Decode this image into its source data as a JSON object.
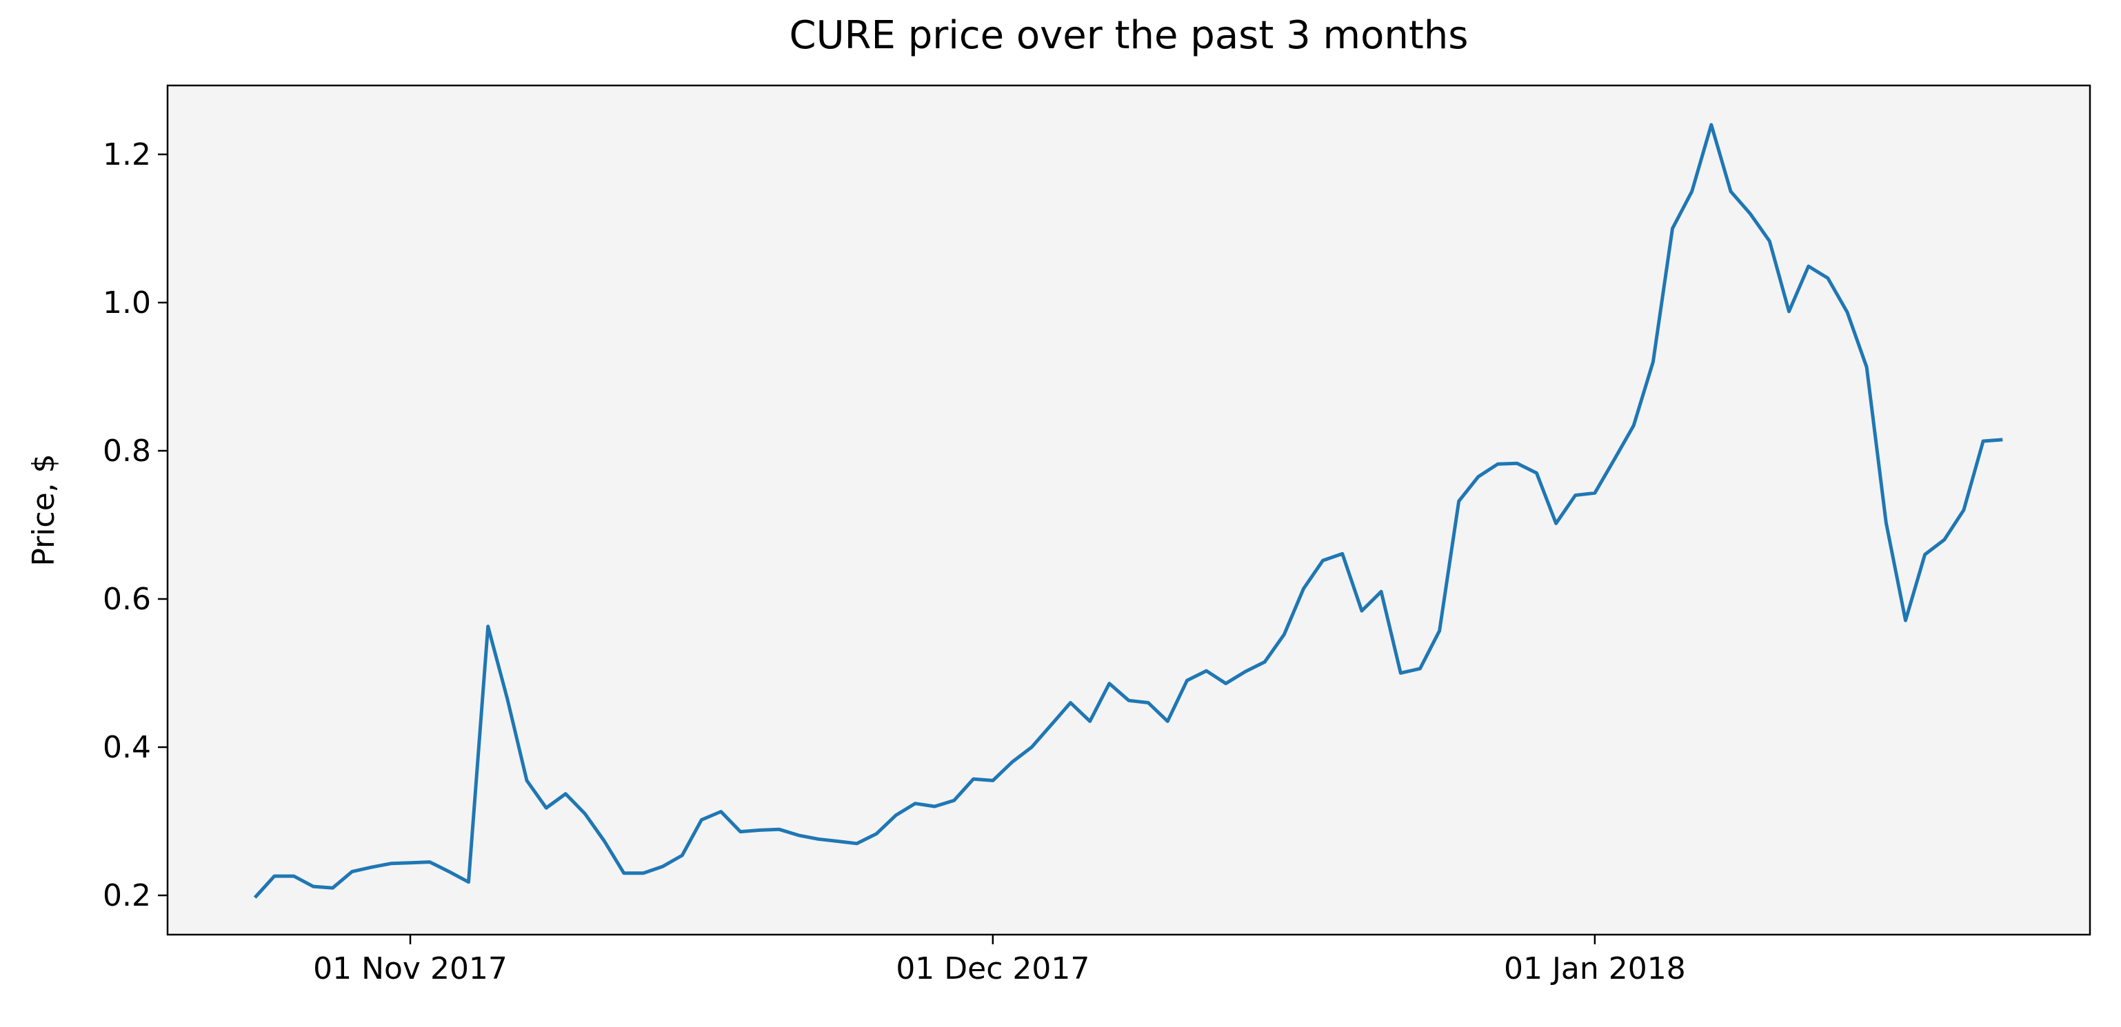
{
  "chart_data": {
    "type": "line",
    "title": "CURE price over the past 3 months",
    "ylabel": "Price, $",
    "x": [
      "2017-10-24",
      "2017-10-25",
      "2017-10-26",
      "2017-10-27",
      "2017-10-28",
      "2017-10-29",
      "2017-10-30",
      "2017-10-31",
      "2017-11-01",
      "2017-11-02",
      "2017-11-03",
      "2017-11-04",
      "2017-11-05",
      "2017-11-06",
      "2017-11-07",
      "2017-11-08",
      "2017-11-09",
      "2017-11-10",
      "2017-11-11",
      "2017-11-12",
      "2017-11-13",
      "2017-11-14",
      "2017-11-15",
      "2017-11-16",
      "2017-11-17",
      "2017-11-18",
      "2017-11-19",
      "2017-11-20",
      "2017-11-21",
      "2017-11-22",
      "2017-11-23",
      "2017-11-24",
      "2017-11-25",
      "2017-11-26",
      "2017-11-27",
      "2017-11-28",
      "2017-11-29",
      "2017-11-30",
      "2017-12-01",
      "2017-12-02",
      "2017-12-03",
      "2017-12-04",
      "2017-12-05",
      "2017-12-06",
      "2017-12-07",
      "2017-12-08",
      "2017-12-09",
      "2017-12-10",
      "2017-12-11",
      "2017-12-12",
      "2017-12-13",
      "2017-12-14",
      "2017-12-15",
      "2017-12-16",
      "2017-12-17",
      "2017-12-18",
      "2017-12-19",
      "2017-12-20",
      "2017-12-21",
      "2017-12-22",
      "2017-12-23",
      "2017-12-24",
      "2017-12-25",
      "2017-12-26",
      "2017-12-27",
      "2017-12-28",
      "2017-12-29",
      "2017-12-30",
      "2017-12-31",
      "2018-01-01",
      "2018-01-02",
      "2018-01-03",
      "2018-01-04",
      "2018-01-05",
      "2018-01-06",
      "2018-01-07",
      "2018-01-08",
      "2018-01-09",
      "2018-01-10",
      "2018-01-11",
      "2018-01-12",
      "2018-01-13",
      "2018-01-14",
      "2018-01-15",
      "2018-01-16",
      "2018-01-17",
      "2018-01-18",
      "2018-01-19",
      "2018-01-20",
      "2018-01-21",
      "2018-01-22"
    ],
    "series": [
      {
        "name": "CURE",
        "color": "#1f77b4",
        "values": [
          0.197,
          0.226,
          0.226,
          0.212,
          0.21,
          0.232,
          0.238,
          0.243,
          0.244,
          0.245,
          0.232,
          0.218,
          0.563,
          0.465,
          0.355,
          0.318,
          0.337,
          0.31,
          0.273,
          0.23,
          0.23,
          0.239,
          0.254,
          0.302,
          0.313,
          0.286,
          0.288,
          0.289,
          0.281,
          0.276,
          0.273,
          0.27,
          0.283,
          0.308,
          0.324,
          0.32,
          0.328,
          0.357,
          0.355,
          0.38,
          0.4,
          0.43,
          0.46,
          0.435,
          0.486,
          0.463,
          0.46,
          0.435,
          0.49,
          0.503,
          0.486,
          0.502,
          0.515,
          0.552,
          0.614,
          0.652,
          0.661,
          0.584,
          0.61,
          0.5,
          0.506,
          0.557,
          0.732,
          0.765,
          0.782,
          0.783,
          0.77,
          0.702,
          0.74,
          0.743,
          0.788,
          0.834,
          0.92,
          1.1,
          1.15,
          1.24,
          1.15,
          1.12,
          1.083,
          0.988,
          1.049,
          1.033,
          0.987,
          0.913,
          0.703,
          0.571,
          0.66,
          0.68,
          0.72,
          0.813,
          0.815
        ]
      }
    ],
    "xlim": [
      "2017-10-19T12:00:00Z",
      "2018-01-26T12:00:00Z"
    ],
    "xticks": [
      {
        "value": "2017-11-01",
        "label": "01 Nov 2017"
      },
      {
        "value": "2017-12-01",
        "label": "01 Dec 2017"
      },
      {
        "value": "2018-01-01",
        "label": "01 Jan 2018"
      }
    ],
    "ylim": [
      0.147,
      1.293
    ],
    "yticks": [
      {
        "value": 0.2,
        "label": "0.2"
      },
      {
        "value": 0.4,
        "label": "0.4"
      },
      {
        "value": 0.6,
        "label": "0.6"
      },
      {
        "value": 0.8,
        "label": "0.8"
      },
      {
        "value": 1.0,
        "label": "1.0"
      },
      {
        "value": 1.2,
        "label": "1.2"
      }
    ],
    "background": "#f4f4f4",
    "grid": false
  }
}
